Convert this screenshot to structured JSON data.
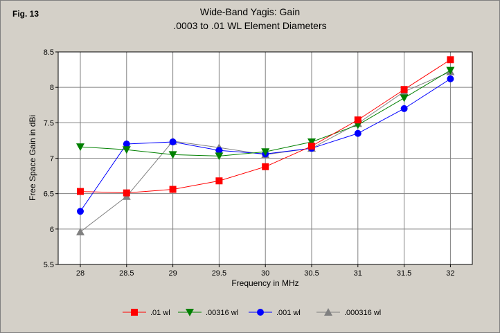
{
  "figure_label": "Fig. 13",
  "chart_data": {
    "type": "line",
    "title": "Wide-Band Yagis: Gain",
    "subtitle": ".0003 to .01 WL Element Diameters",
    "xlabel": "Frequency in MHz",
    "ylabel": "Free Space Gain in dBi",
    "x": [
      28,
      28.5,
      29,
      29.5,
      30,
      30.5,
      31,
      31.5,
      32
    ],
    "x_tick_labels": [
      "28",
      "28.5",
      "29",
      "29.5",
      "30",
      "30.5",
      "31",
      "31.5",
      "32"
    ],
    "ylim": [
      5.5,
      8.5
    ],
    "y_ticks": [
      5.5,
      6,
      6.5,
      7,
      7.5,
      8,
      8.5
    ],
    "y_tick_labels": [
      "5.5",
      "6",
      "6.5",
      "7",
      "7.5",
      "8",
      "8.5"
    ],
    "grid": true,
    "legend_position": "bottom",
    "series": [
      {
        "name": ".01 wl",
        "color": "#ff0000",
        "marker": "square",
        "values": [
          6.53,
          6.51,
          6.56,
          6.68,
          6.88,
          7.17,
          7.54,
          7.97,
          8.39
        ]
      },
      {
        "name": ".00316 wl",
        "color": "#008000",
        "marker": "triangle-down",
        "values": [
          7.16,
          7.12,
          7.05,
          7.03,
          7.09,
          7.23,
          7.47,
          7.85,
          8.24
        ]
      },
      {
        "name": ".001 wl",
        "color": "#0000ff",
        "marker": "circle",
        "values": [
          6.25,
          7.2,
          7.23,
          7.11,
          7.06,
          7.14,
          7.35,
          7.7,
          8.12
        ]
      },
      {
        "name": ".000316 wl",
        "color": "#808080",
        "marker": "triangle-up",
        "values": [
          5.96,
          6.46,
          7.24,
          7.15,
          7.05,
          7.14,
          7.49,
          7.94,
          8.22
        ]
      }
    ]
  }
}
